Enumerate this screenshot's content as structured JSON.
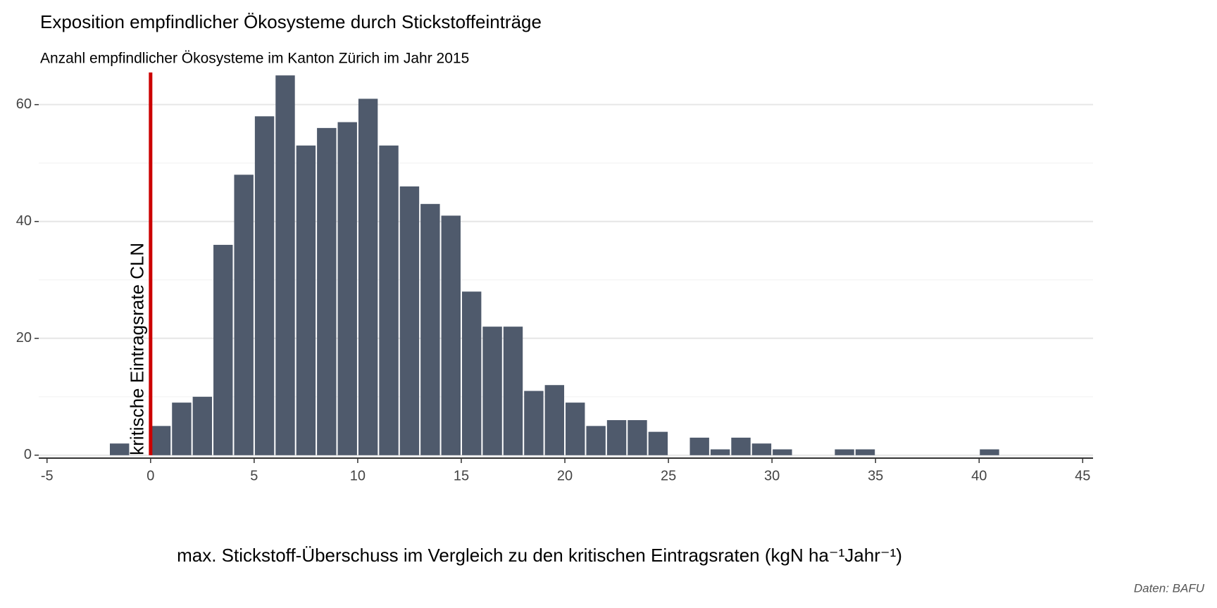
{
  "chart_data": {
    "type": "histogram",
    "title": "Exposition empfindlicher Ökosysteme durch Stickstoffeinträge",
    "subtitle": "Anzahl empfindlicher Ökosysteme im Kanton Zürich im Jahr 2015",
    "x_label": "max. Stickstoff-Überschuss im Vergleich zu den kritischen Eintragsraten (kgN ha⁻¹Jahr⁻¹)",
    "caption": "Daten: BAFU",
    "bins": [
      -2,
      -1,
      0,
      1,
      2,
      3,
      4,
      5,
      6,
      7,
      8,
      9,
      10,
      11,
      12,
      13,
      14,
      15,
      16,
      17,
      18,
      19,
      20,
      21,
      22,
      23,
      24,
      25,
      26,
      27,
      28,
      29,
      30,
      31,
      32,
      33,
      34,
      35,
      36,
      37,
      38,
      39,
      40,
      41
    ],
    "values": [
      2,
      0,
      5,
      9,
      10,
      36,
      48,
      58,
      65,
      53,
      56,
      57,
      61,
      53,
      46,
      43,
      41,
      28,
      22,
      22,
      11,
      12,
      9,
      5,
      6,
      6,
      4,
      0,
      3,
      1,
      3,
      2,
      1,
      0,
      0,
      1,
      1,
      0,
      0,
      0,
      0,
      0,
      1
    ],
    "color": "#4f5a6c",
    "xlim": [
      -5.4,
      45.5
    ],
    "ylim": [
      -0.5,
      65.5
    ],
    "xticks": [
      -5,
      0,
      5,
      10,
      15,
      20,
      25,
      30,
      35,
      40,
      45
    ],
    "yticks": [
      0,
      20,
      40,
      60
    ],
    "y_minor_grid": [
      10,
      30,
      50
    ],
    "grid": true,
    "reference_line": {
      "x": 0,
      "label": "kritische Eintragsrate CLN",
      "color": "#cc0000"
    }
  }
}
